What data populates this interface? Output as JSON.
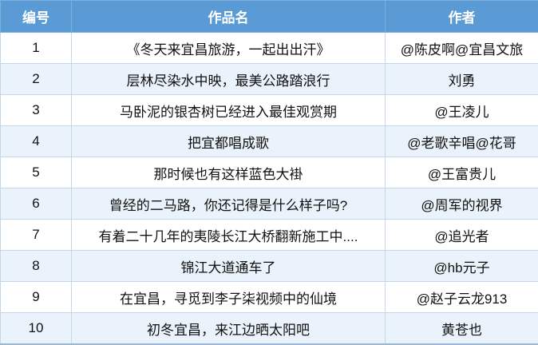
{
  "table": {
    "headers": [
      "编号",
      "作品名",
      "作者"
    ],
    "rows": [
      {
        "no": "1",
        "title": "《冬天来宜昌旅游，一起出出汗》",
        "author": "@陈皮啊@宜昌文旅"
      },
      {
        "no": "2",
        "title": "层林尽染水中映，最美公路踏浪行",
        "author": "刘勇"
      },
      {
        "no": "3",
        "title": "马卧泥的银杏树已经进入最佳观赏期",
        "author": "@王凌儿"
      },
      {
        "no": "4",
        "title": "把宜都唱成歌",
        "author": "@老歌辛唱@花哥"
      },
      {
        "no": "5",
        "title": "那时候也有这样蓝色大褂",
        "author": "@王富贵儿"
      },
      {
        "no": "6",
        "title": "曾经的二马路，你还记得是什么样子吗?",
        "author": "@周军的视界"
      },
      {
        "no": "7",
        "title": "有着二十几年的夷陵长江大桥翻新施工中....",
        "author": "@追光者"
      },
      {
        "no": "8",
        "title": "锦江大道通车了",
        "author": "@hb元子"
      },
      {
        "no": "9",
        "title": "在宜昌，寻觅到李子柒视频中的仙境",
        "author": "@赵子云龙913"
      },
      {
        "no": "10",
        "title": "初冬宜昌，来江边晒太阳吧",
        "author": "黄苍也"
      }
    ]
  },
  "colors": {
    "header_bg": "#5b9bd5",
    "alt_row_bg": "#eaf2fb",
    "border": "#c3d6ea"
  }
}
